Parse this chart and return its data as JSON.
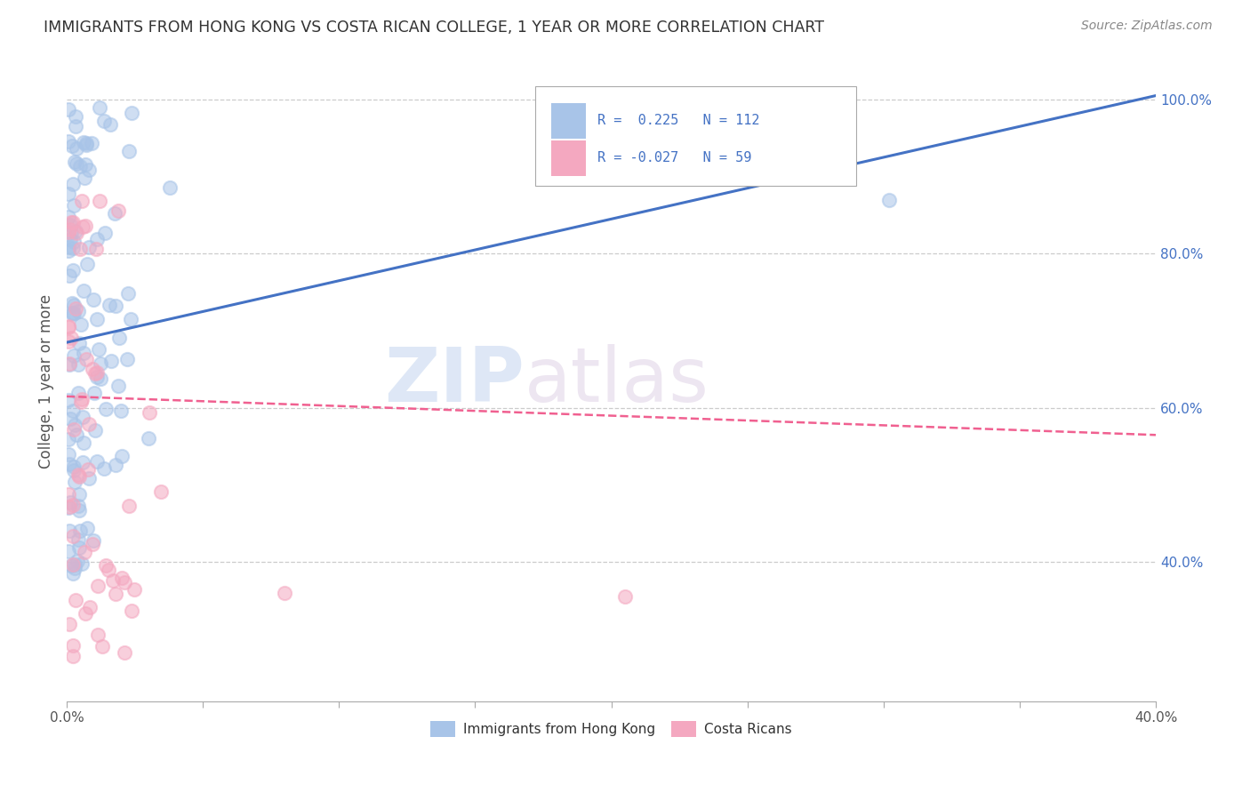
{
  "title": "IMMIGRANTS FROM HONG KONG VS COSTA RICAN COLLEGE, 1 YEAR OR MORE CORRELATION CHART",
  "source": "Source: ZipAtlas.com",
  "ylabel": "College, 1 year or more",
  "xlim": [
    0.0,
    0.4
  ],
  "ylim": [
    0.22,
    1.05
  ],
  "yticklabels_right": [
    "100.0%",
    "80.0%",
    "60.0%",
    "40.0%"
  ],
  "yticks_right": [
    1.0,
    0.8,
    0.6,
    0.4
  ],
  "color_blue": "#a8c4e8",
  "color_pink": "#f4a8c0",
  "line_blue": "#4472c4",
  "line_pink": "#f06090",
  "watermark_zip": "ZIP",
  "watermark_atlas": "atlas",
  "blue_line_x": [
    0.0,
    0.4
  ],
  "blue_line_y": [
    0.685,
    1.005
  ],
  "pink_line_x": [
    0.0,
    0.4
  ],
  "pink_line_y": [
    0.615,
    0.565
  ]
}
